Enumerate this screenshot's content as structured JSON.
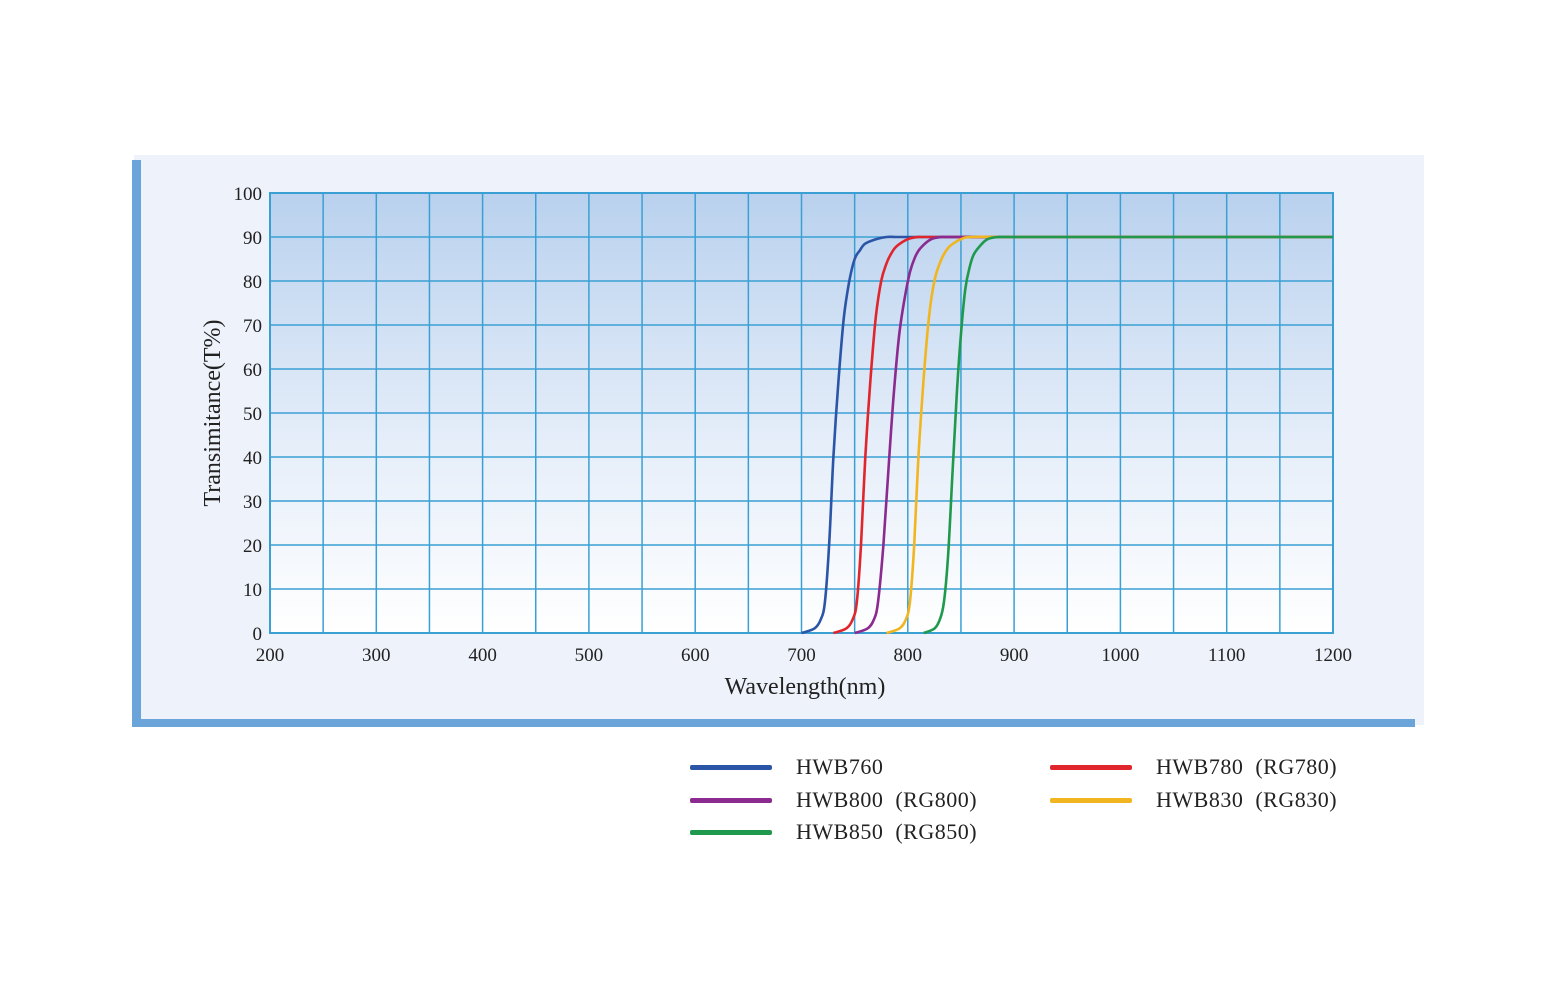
{
  "chart_data": {
    "type": "line",
    "title": "",
    "xlabel": "Wavelength(nm)",
    "ylabel": "Transimitance(T%)",
    "xlim": [
      200,
      1200
    ],
    "ylim": [
      0,
      100
    ],
    "xticks": [
      200,
      300,
      400,
      500,
      600,
      700,
      800,
      900,
      1000,
      1100,
      1200
    ],
    "yticks": [
      0,
      10,
      20,
      30,
      40,
      50,
      60,
      70,
      80,
      90,
      100
    ],
    "x_grid_step": 50,
    "grid": true,
    "legend_position": "bottom-right",
    "series": [
      {
        "name": "HWB760",
        "color": "#2b55a6",
        "x": [
          700,
          712,
          718,
          722,
          726,
          730,
          735,
          740,
          745,
          750,
          755,
          760,
          770,
          780,
          790,
          800,
          820,
          900,
          1000,
          1100,
          1200
        ],
        "y": [
          0,
          1,
          3,
          7,
          20,
          40,
          58,
          72,
          80,
          85,
          87,
          88.5,
          89.5,
          90,
          90,
          90,
          90,
          90,
          90,
          90,
          90
        ]
      },
      {
        "name": "HWB780 (RG780)",
        "color": "#e0262c",
        "x": [
          730,
          742,
          748,
          752,
          756,
          760,
          765,
          770,
          775,
          780,
          785,
          790,
          800,
          810,
          820,
          900,
          1000,
          1100,
          1200
        ],
        "y": [
          0,
          1,
          3,
          7,
          20,
          40,
          58,
          72,
          80,
          84,
          86.5,
          88,
          89.5,
          90,
          90,
          90,
          90,
          90,
          90
        ]
      },
      {
        "name": "HWB800 (RG800)",
        "color": "#8b2a8f",
        "x": [
          750,
          762,
          768,
          772,
          777,
          782,
          787,
          792,
          797,
          802,
          807,
          812,
          822,
          832,
          840,
          900,
          1000,
          1100,
          1200
        ],
        "y": [
          0,
          1,
          3,
          7,
          20,
          38,
          55,
          68,
          76,
          82,
          85.5,
          87.5,
          89.5,
          90,
          90,
          90,
          90,
          90,
          90
        ]
      },
      {
        "name": "HWB830 (RG830)",
        "color": "#f1b520",
        "x": [
          780,
          792,
          798,
          802,
          806,
          810,
          815,
          820,
          825,
          830,
          835,
          840,
          850,
          860,
          900,
          1000,
          1100,
          1200
        ],
        "y": [
          0,
          1,
          3,
          7,
          20,
          40,
          58,
          72,
          80,
          84,
          86.5,
          88,
          89.5,
          90,
          90,
          90,
          90,
          90
        ]
      },
      {
        "name": "HWB850 (RG850)",
        "color": "#1f9a4c",
        "x": [
          815,
          825,
          830,
          834,
          838,
          842,
          846,
          850,
          854,
          858,
          862,
          868,
          875,
          885,
          900,
          1000,
          1100,
          1200
        ],
        "y": [
          0,
          1,
          3,
          7,
          18,
          36,
          54,
          68,
          78,
          83,
          86,
          88,
          89.5,
          90,
          90,
          90,
          90,
          90
        ]
      }
    ]
  },
  "legend": {
    "items": [
      {
        "label": "HWB760",
        "color": "#2b55a6"
      },
      {
        "label": "HWB780  (RG780)",
        "color": "#e0262c"
      },
      {
        "label": "HWB800  (RG800)",
        "color": "#8b2a8f"
      },
      {
        "label": "HWB830  (RG830)",
        "color": "#f1b520"
      },
      {
        "label": "HWB850  (RG850)",
        "color": "#1f9a4c"
      }
    ]
  },
  "colors": {
    "frame_accent": "#6aa4d8",
    "grid": "#3aa0d4",
    "panel_bg": "#eef2fa"
  }
}
